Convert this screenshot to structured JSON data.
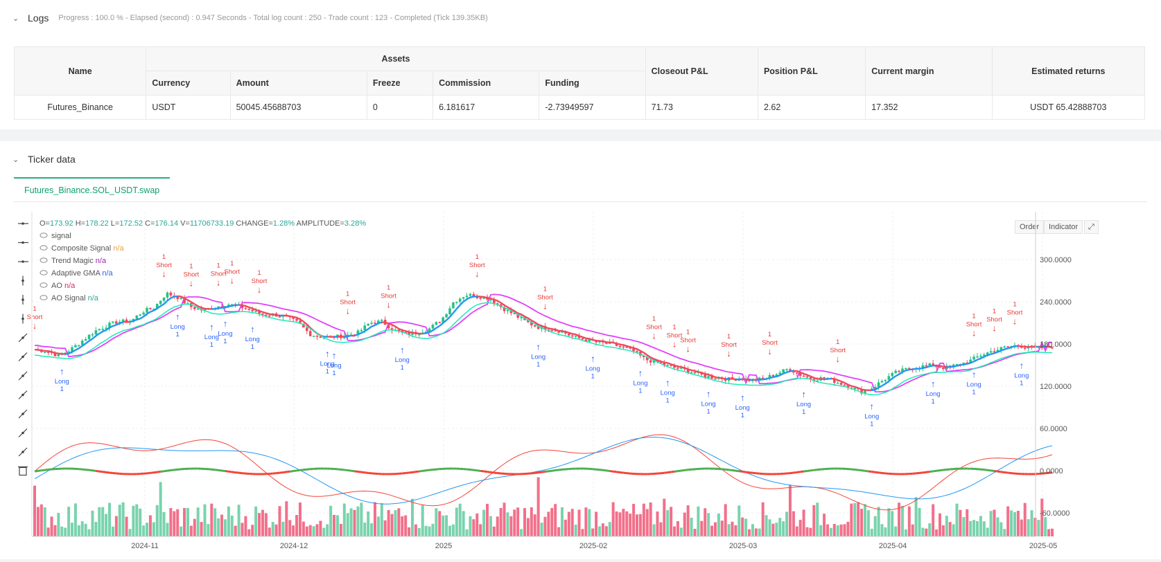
{
  "logs": {
    "title": "Logs",
    "summary": "Progress : 100.0 % - Elapsed (second) : 0.947  Seconds - Total log count : 250 - Trade count : 123 - Completed (Tick 139.35KB)"
  },
  "assets_table": {
    "col_name": "Name",
    "col_assets": "Assets",
    "col_currency": "Currency",
    "col_amount": "Amount",
    "col_freeze": "Freeze",
    "col_commission": "Commission",
    "col_funding": "Funding",
    "col_closeout": "Closeout P&L",
    "col_position": "Position P&L",
    "col_margin": "Current margin",
    "col_returns": "Estimated returns",
    "row": {
      "name": "Futures_Binance",
      "currency": "USDT",
      "amount": "50045.45688703",
      "freeze": "0",
      "commission": "6.181617",
      "funding": "-2.73949597",
      "closeout": "71.73",
      "position": "2.62",
      "margin": "17.352",
      "returns": "USDT 65.42888703"
    }
  },
  "ticker": {
    "title": "Ticker data",
    "tab": "Futures_Binance.SOL_USDT.swap",
    "order_btn": "Order",
    "indicator_btn": "Indicator"
  },
  "ohlc": {
    "o_label": "O=",
    "o": "173.92",
    "h_label": "H=",
    "h": "178.22",
    "l_label": "L=",
    "l": "172.52",
    "c_label": "C=",
    "c": "176.14",
    "v_label": "V=",
    "v": "11706733.19",
    "change_label": "CHANGE=",
    "change": "1.28%",
    "amp_label": "AMPLITUDE=",
    "amp": "3.28%"
  },
  "legend": [
    {
      "name": "signal",
      "value": ""
    },
    {
      "name": "Composite Signal",
      "value": "n/a",
      "color": "#e6a23c"
    },
    {
      "name": "Trend Magic",
      "value": "n/a",
      "color": "#9c27b0"
    },
    {
      "name": "Adaptive GMA",
      "value": "n/a",
      "color": "#2962ff"
    },
    {
      "name": "AO",
      "value": "n/a",
      "color": "#e91e63"
    },
    {
      "name": "AO Signal",
      "value": "n/a",
      "color": "#26a69a"
    }
  ],
  "chart_data": {
    "type": "candlestick",
    "x_ticks": [
      "2024-11",
      "2024-12",
      "2025",
      "2025-02",
      "2025-03",
      "2025-04",
      "2025-05"
    ],
    "y_ticks": [
      "300.0000",
      "240.0000",
      "180.0000",
      "120.0000",
      "60.0000",
      "0.0000",
      "-60.0000"
    ],
    "price_path": [
      172,
      170,
      163,
      172,
      185,
      198,
      206,
      212,
      212,
      226,
      232,
      252,
      246,
      233,
      228,
      232,
      237,
      234,
      228,
      222,
      222,
      218,
      210,
      194,
      190,
      190,
      192,
      196,
      210,
      212,
      200,
      194,
      196,
      202,
      215,
      240,
      250,
      248,
      245,
      232,
      222,
      212,
      204,
      202,
      198,
      190,
      186,
      182,
      180,
      176,
      170,
      158,
      154,
      148,
      144,
      140,
      134,
      132,
      130,
      131,
      128,
      131,
      138,
      145,
      136,
      130,
      132,
      126,
      120,
      112,
      118,
      130,
      140,
      145,
      148,
      150,
      146,
      150,
      155,
      164,
      170,
      175,
      178,
      176,
      174,
      176
    ],
    "signals": [
      {
        "type": "Short",
        "count": "1"
      },
      {
        "type": "Long",
        "count": "1"
      }
    ],
    "colors": {
      "up": "#26c281",
      "down": "#f0485f",
      "adaptive_gma": "#2196f3",
      "trend_magic": "#e040fb",
      "ao_signal_up": "#4caf50",
      "ao_signal_down": "#f44336",
      "long": "#2962ff",
      "short": "#e53935"
    }
  },
  "toolbar_icons": [
    "horizontal-line-icon",
    "horizontal-ray-icon",
    "extended-line-icon",
    "vertical-line-icon",
    "vertical-segment-icon",
    "vertical-ray-icon",
    "trend-line-icon",
    "trend-ray-icon",
    "arrow-line-icon",
    "price-label-icon",
    "parallel-channel-icon",
    "pitchfork-icon",
    "fib-levels-icon",
    "trash-icon"
  ]
}
